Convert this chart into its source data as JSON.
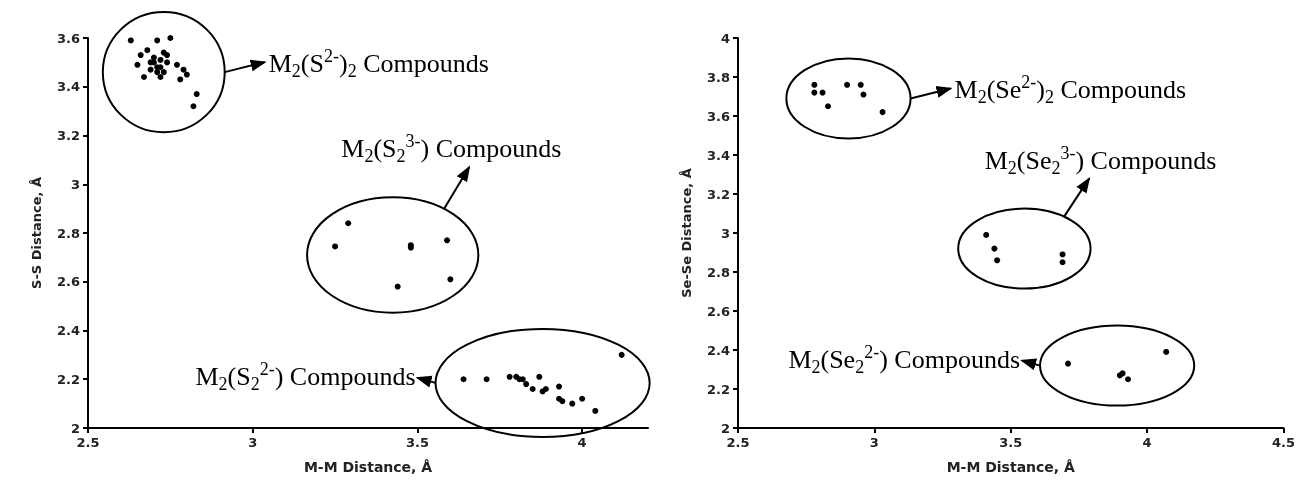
{
  "chart_data": [
    {
      "type": "scatter",
      "xlabel": "M-M Distance, Å",
      "ylabel": "S-S Distance, Å",
      "xlim": [
        2.5,
        4.2
      ],
      "xticks": [
        2.5,
        3,
        3.5,
        4
      ],
      "ylim": [
        2,
        3.6
      ],
      "yticks": [
        2,
        2.2,
        2.4,
        2.6,
        2.8,
        3,
        3.2,
        3.4,
        3.6
      ],
      "grid": false,
      "marker": "circle",
      "series": [
        {
          "name": "M$_{2}$(S$^{2-}$)$_{2}$ Compounds",
          "color": "#000000",
          "x": [
            2.63,
            2.71,
            2.75,
            2.68,
            2.66,
            2.65,
            2.67,
            2.72,
            2.77,
            2.79,
            2.8,
            2.78,
            2.83,
            2.82,
            2.74,
            2.7,
            2.71,
            2.72,
            2.69,
            2.73,
            2.7,
            2.72,
            2.74,
            2.71,
            2.73,
            2.69
          ],
          "values": [
            3.59,
            3.59,
            3.6,
            3.55,
            3.53,
            3.49,
            3.44,
            3.44,
            3.49,
            3.47,
            3.45,
            3.43,
            3.37,
            3.32,
            3.53,
            3.5,
            3.48,
            3.51,
            3.47,
            3.46,
            3.52,
            3.48,
            3.5,
            3.46,
            3.54,
            3.5
          ]
        },
        {
          "name": "M$_{2}$(S$_{2}$$^{3-}$) Compounds",
          "color": "#000000",
          "x": [
            3.29,
            3.25,
            3.48,
            3.48,
            3.59,
            3.6,
            3.44
          ],
          "values": [
            2.84,
            2.745,
            2.75,
            2.74,
            2.77,
            2.61,
            2.58
          ]
        },
        {
          "name": "M$_{2}$(S$_{2}$$^{2-}$) Compounds",
          "color": "#000000",
          "x": [
            3.64,
            3.71,
            3.78,
            3.8,
            3.81,
            3.82,
            3.83,
            3.85,
            3.87,
            3.88,
            3.89,
            3.93,
            3.93,
            3.94,
            3.97,
            4.0,
            4.04,
            4.12
          ],
          "values": [
            2.2,
            2.2,
            2.21,
            2.21,
            2.2,
            2.2,
            2.18,
            2.16,
            2.21,
            2.15,
            2.16,
            2.17,
            2.12,
            2.11,
            2.1,
            2.12,
            2.07,
            2.3
          ]
        }
      ]
    },
    {
      "type": "scatter",
      "xlabel": "M-M Distance, Å",
      "ylabel": "Se-Se Distance, Å",
      "xlim": [
        2.5,
        4.5
      ],
      "xticks": [
        2.5,
        3,
        3.5,
        4,
        4.5
      ],
      "ylim": [
        2,
        4
      ],
      "yticks": [
        2,
        2.2,
        2.4,
        2.6,
        2.8,
        3,
        3.2,
        3.4,
        3.6,
        3.8,
        4
      ],
      "grid": false,
      "marker": "circle",
      "series": [
        {
          "name": "M$_{2}$(Se$^{2-}$)$_{2}$ Compounds",
          "color": "#000000",
          "x": [
            2.78,
            2.78,
            2.81,
            2.83,
            2.9,
            2.95,
            2.96,
            3.03
          ],
          "values": [
            3.76,
            3.72,
            3.72,
            3.65,
            3.76,
            3.76,
            3.71,
            3.62
          ]
        },
        {
          "name": "M$_{2}$(Se$_{2}$$^{3-}$) Compounds",
          "color": "#000000",
          "x": [
            3.41,
            3.44,
            3.45,
            3.69,
            3.69
          ],
          "values": [
            2.99,
            2.92,
            2.86,
            2.89,
            2.85
          ]
        },
        {
          "name": "M$_{2}$(Se$_{2}$$^{2-}$) Compounds",
          "color": "#000000",
          "x": [
            3.71,
            3.9,
            3.91,
            3.93,
            4.07
          ],
          "values": [
            2.33,
            2.27,
            2.28,
            2.25,
            2.39
          ]
        }
      ]
    }
  ]
}
